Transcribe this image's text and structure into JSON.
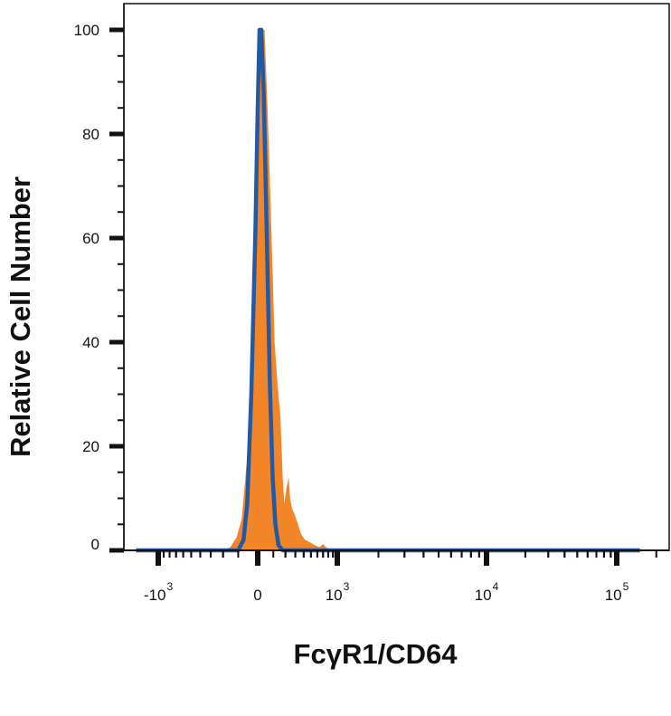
{
  "chart_data": {
    "type": "area",
    "title": "",
    "xlabel": "FcγR1/CD64",
    "ylabel": "Relative Cell Number",
    "x_scale": "biexponential",
    "ylim": [
      0,
      100
    ],
    "y_ticks": [
      "0",
      "20",
      "40",
      "60",
      "80",
      "100"
    ],
    "x_ticks": [
      {
        "value": -1000,
        "base": "-10",
        "exp": "3"
      },
      {
        "value": 0,
        "base": "0",
        "exp": ""
      },
      {
        "value": 1000,
        "base": "10",
        "exp": "3"
      },
      {
        "value": 10000,
        "base": "10",
        "exp": "4"
      },
      {
        "value": 100000,
        "base": "10",
        "exp": "5"
      }
    ],
    "grid": false,
    "legend": "none",
    "series": [
      {
        "style": "filled",
        "color": "#f28527",
        "points": [
          [
            -1500,
            0
          ],
          [
            -200,
            0
          ],
          [
            -150,
            0.6
          ],
          [
            -110,
            2.5
          ],
          [
            -80,
            6
          ],
          [
            -50,
            18
          ],
          [
            -25,
            45
          ],
          [
            -5,
            75
          ],
          [
            10,
            100
          ],
          [
            40,
            100
          ],
          [
            60,
            85
          ],
          [
            90,
            58
          ],
          [
            110,
            40
          ],
          [
            135,
            31
          ],
          [
            155,
            26
          ],
          [
            175,
            14
          ],
          [
            190,
            9
          ],
          [
            210,
            12
          ],
          [
            230,
            14
          ],
          [
            245,
            10
          ],
          [
            265,
            8
          ],
          [
            290,
            7
          ],
          [
            330,
            5
          ],
          [
            370,
            3
          ],
          [
            420,
            2
          ],
          [
            480,
            1.6
          ],
          [
            560,
            1.0
          ],
          [
            640,
            0.6
          ],
          [
            700,
            1.2
          ],
          [
            760,
            0.5
          ],
          [
            900,
            0.2
          ],
          [
            1100,
            0
          ],
          [
            150000,
            0
          ]
        ]
      },
      {
        "style": "line",
        "color": "#2159a6",
        "points": [
          [
            -1500,
            0
          ],
          [
            -100,
            0
          ],
          [
            -70,
            2
          ],
          [
            -50,
            9
          ],
          [
            -30,
            30
          ],
          [
            -10,
            62
          ],
          [
            0,
            85
          ],
          [
            10,
            100
          ],
          [
            20,
            100
          ],
          [
            35,
            88
          ],
          [
            55,
            60
          ],
          [
            75,
            32
          ],
          [
            95,
            14
          ],
          [
            115,
            5
          ],
          [
            140,
            1
          ],
          [
            175,
            0
          ],
          [
            150000,
            0
          ]
        ]
      }
    ]
  }
}
